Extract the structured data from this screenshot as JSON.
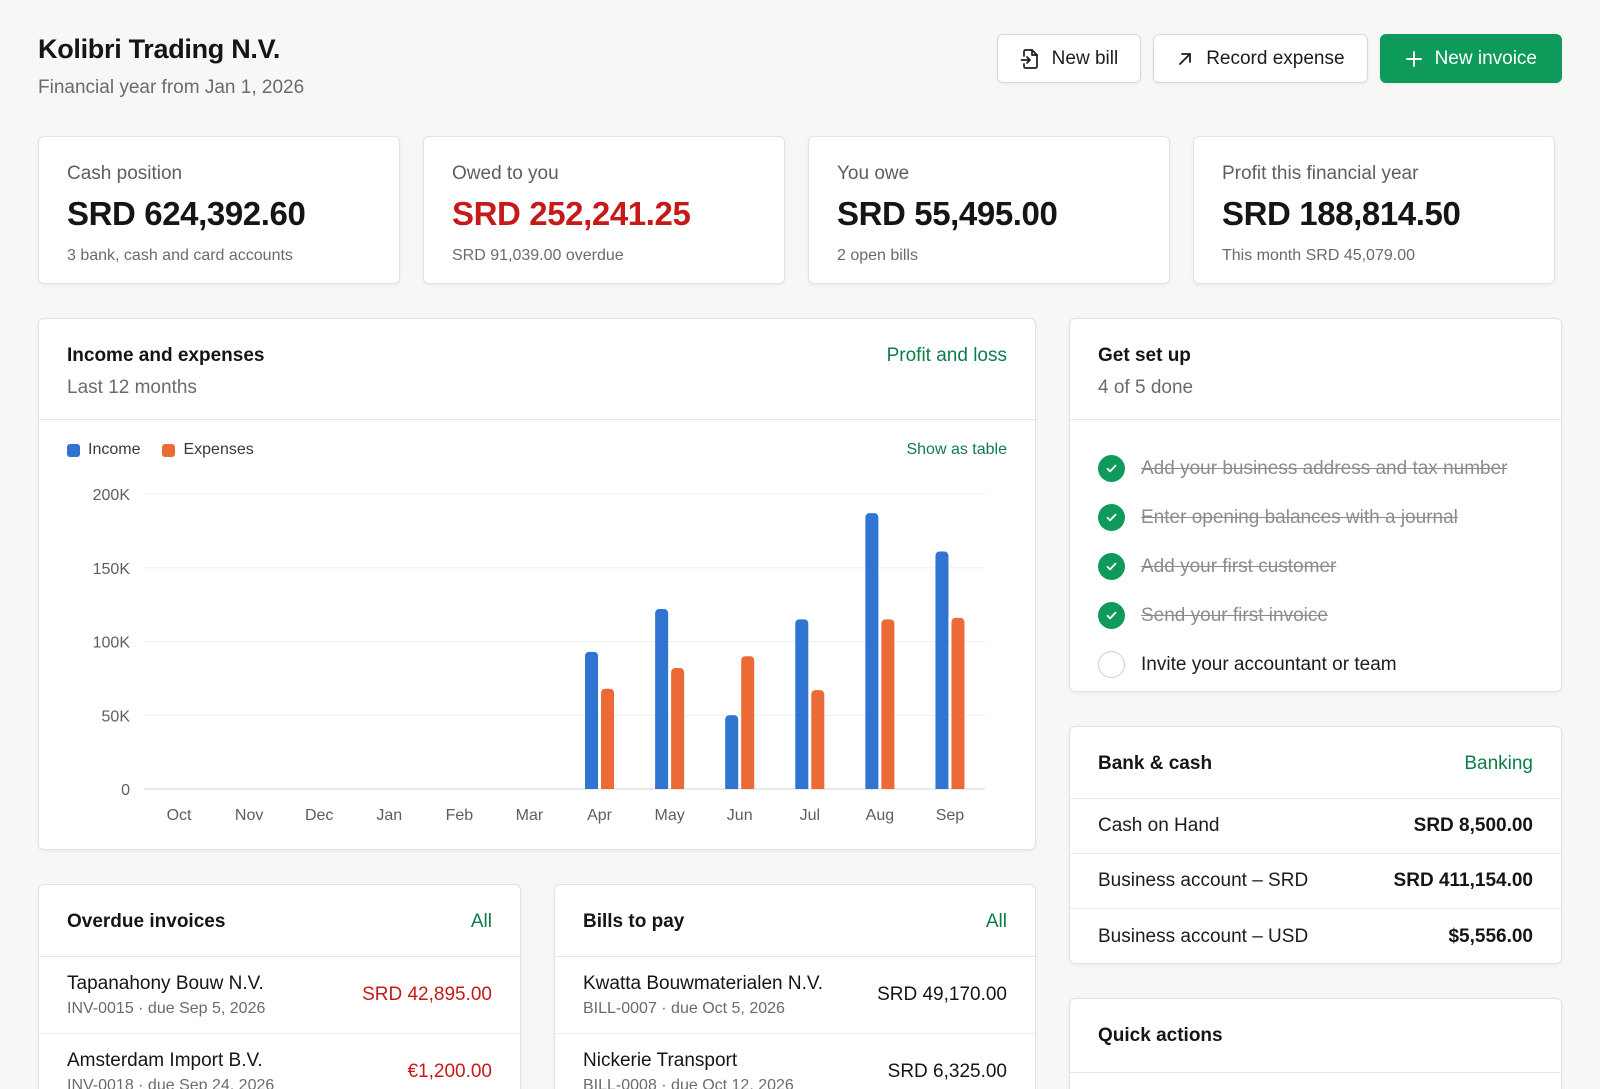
{
  "header": {
    "company": "Kolibri Trading N.V.",
    "financial_year": "Financial year from Jan 1, 2026",
    "buttons": {
      "new_bill": "New bill",
      "record_expense": "Record expense",
      "new_invoice": "New invoice"
    }
  },
  "kpis": [
    {
      "label": "Cash position",
      "value": "SRD 624,392.60",
      "sub": "3 bank, cash and card accounts"
    },
    {
      "label": "Owed to you",
      "value": "SRD 252,241.25",
      "sub": "SRD 91,039.00 overdue"
    },
    {
      "label": "You owe",
      "value": "SRD 55,495.00",
      "sub": "2 open bills"
    },
    {
      "label": "Profit this financial year",
      "value": "SRD 188,814.50",
      "sub": "This month SRD 45,079.00"
    }
  ],
  "income_chart": {
    "title": "Income and expenses",
    "subtitle": "Last 12 months",
    "link": "Profit and loss",
    "show_table": "Show as table",
    "legend": {
      "income": "Income",
      "expenses": "Expenses"
    }
  },
  "colors": {
    "income": "#2f74d0",
    "expenses": "#ec6a36",
    "accent": "#0e9a5a",
    "negative": "#c41a1a"
  },
  "chart_data": {
    "type": "bar",
    "categories": [
      "Oct",
      "Nov",
      "Dec",
      "Jan",
      "Feb",
      "Mar",
      "Apr",
      "May",
      "Jun",
      "Jul",
      "Aug",
      "Sep"
    ],
    "series": [
      {
        "name": "Income",
        "values": [
          0,
          0,
          0,
          0,
          0,
          0,
          93000,
          122000,
          50000,
          115000,
          187000,
          161000
        ]
      },
      {
        "name": "Expenses",
        "values": [
          0,
          0,
          0,
          0,
          0,
          0,
          68000,
          82000,
          90000,
          67000,
          115000,
          116000
        ]
      }
    ],
    "ylim": [
      0,
      200000
    ],
    "yticks": [
      0,
      50000,
      100000,
      150000,
      200000
    ],
    "ytick_labels": [
      "0",
      "50K",
      "100K",
      "150K",
      "200K"
    ],
    "grid": true,
    "legend_position": "top-left"
  },
  "setup": {
    "title": "Get set up",
    "progress": "4 of 5 done",
    "items": [
      {
        "label": "Add your business address and tax number",
        "done": true
      },
      {
        "label": "Enter opening balances with a journal",
        "done": true
      },
      {
        "label": "Add your first customer",
        "done": true
      },
      {
        "label": "Send your first invoice",
        "done": true
      },
      {
        "label": "Invite your accountant or team",
        "done": false
      }
    ]
  },
  "bank": {
    "title": "Bank & cash",
    "link": "Banking",
    "accounts": [
      {
        "name": "Cash on Hand",
        "balance": "SRD 8,500.00"
      },
      {
        "name": "Business account – SRD",
        "balance": "SRD 411,154.00"
      },
      {
        "name": "Business account – USD",
        "balance": "$5,556.00"
      }
    ]
  },
  "overdue": {
    "title": "Overdue invoices",
    "link": "All",
    "rows": [
      {
        "name": "Tapanahony Bouw N.V.",
        "meta": "INV-0015 · due Sep 5, 2026",
        "amount": "SRD 42,895.00"
      },
      {
        "name": "Amsterdam Import B.V.",
        "meta": "INV-0018 · due Sep 24, 2026",
        "amount": "€1,200.00"
      }
    ]
  },
  "bills": {
    "title": "Bills to pay",
    "link": "All",
    "rows": [
      {
        "name": "Kwatta Bouwmaterialen N.V.",
        "meta": "BILL-0007 · due Oct 5, 2026",
        "amount": "SRD 49,170.00"
      },
      {
        "name": "Nickerie Transport",
        "meta": "BILL-0008 · due Oct 12, 2026",
        "amount": "SRD 6,325.00"
      }
    ]
  },
  "quick_actions": {
    "title": "Quick actions"
  }
}
